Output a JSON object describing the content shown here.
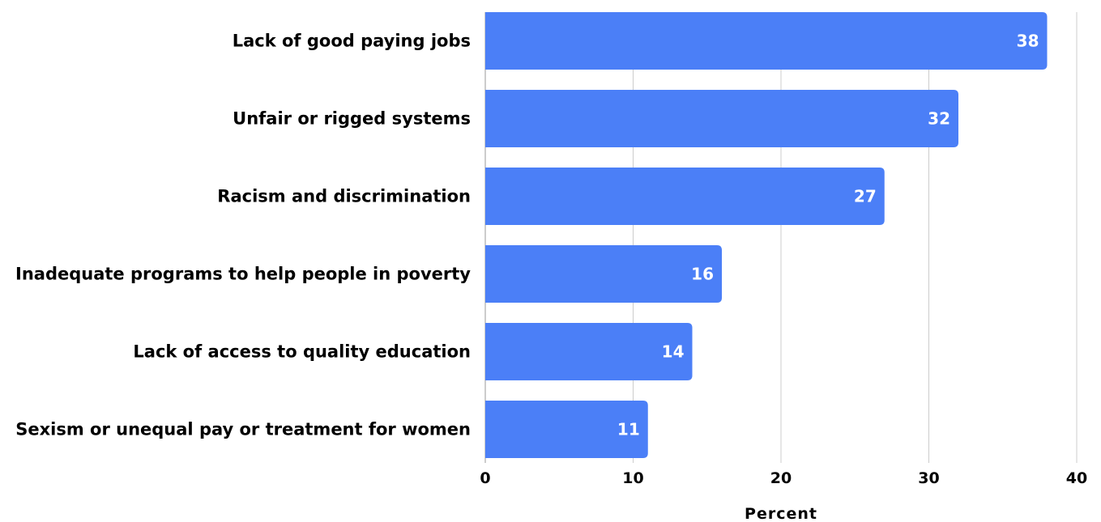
{
  "chart_data": {
    "type": "bar",
    "orientation": "horizontal",
    "categories": [
      "Lack of good paying jobs",
      "Unfair or rigged systems",
      "Racism and discrimination",
      "Inadequate programs to help people in poverty",
      "Lack of access to quality education",
      "Sexism or unequal pay or treatment for women"
    ],
    "values": [
      38,
      32,
      27,
      16,
      14,
      11
    ],
    "data_labels": [
      "38",
      "32",
      "27",
      "16",
      "14",
      "11"
    ],
    "xlabel": "Percent",
    "ylabel": "",
    "xlim": [
      0,
      40
    ],
    "xticks": [
      0,
      10,
      20,
      30,
      40
    ],
    "xtick_labels": [
      "0",
      "10",
      "20",
      "30",
      "40"
    ],
    "grid": "vertical",
    "legend": "none",
    "bar_color": "#4b7ff7",
    "grid_color": "#cccccc",
    "axis_color": "#999999"
  }
}
